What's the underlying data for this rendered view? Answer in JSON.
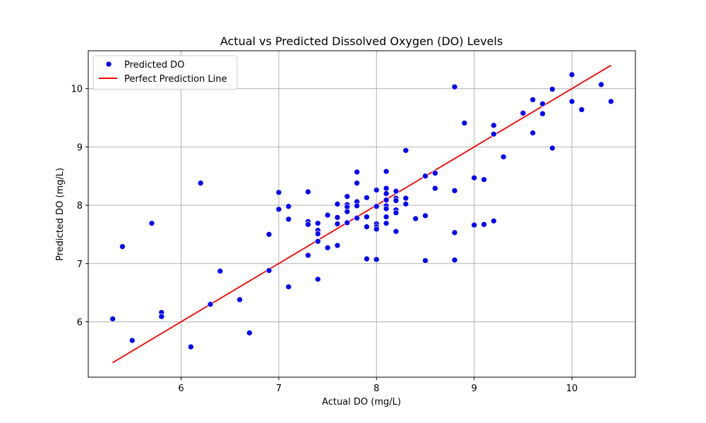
{
  "chart_data": {
    "type": "scatter",
    "title": "Actual vs Predicted Dissolved Oxygen (DO) Levels",
    "xlabel": "Actual DO (mg/L)",
    "ylabel": "Predicted DO (mg/L)",
    "xlim": [
      5.05,
      10.65
    ],
    "ylim": [
      5.05,
      10.65
    ],
    "xticks": [
      6,
      7,
      8,
      9,
      10
    ],
    "yticks": [
      6,
      7,
      8,
      9,
      10
    ],
    "grid": true,
    "legend_position": "upper-left",
    "series": [
      {
        "name": "Predicted DO",
        "kind": "scatter",
        "color": "#0000ff",
        "x": [
          5.3,
          5.4,
          5.5,
          5.7,
          5.8,
          5.8,
          6.1,
          6.2,
          6.3,
          6.4,
          6.6,
          6.7,
          6.9,
          6.9,
          7.0,
          7.0,
          7.1,
          7.1,
          7.1,
          7.3,
          7.3,
          7.3,
          7.3,
          7.4,
          7.4,
          7.4,
          7.4,
          7.4,
          7.5,
          7.5,
          7.6,
          7.6,
          7.6,
          7.6,
          7.7,
          7.7,
          7.7,
          7.7,
          7.7,
          7.8,
          7.8,
          7.8,
          7.8,
          7.8,
          7.9,
          7.9,
          7.9,
          7.9,
          8.0,
          8.0,
          8.0,
          8.0,
          8.0,
          8.0,
          8.1,
          8.1,
          8.1,
          8.1,
          8.1,
          8.1,
          8.1,
          8.1,
          8.2,
          8.2,
          8.2,
          8.2,
          8.2,
          8.2,
          8.3,
          8.3,
          8.3,
          8.4,
          8.5,
          8.5,
          8.5,
          8.6,
          8.6,
          8.8,
          8.8,
          8.8,
          8.8,
          8.9,
          9.0,
          9.0,
          9.1,
          9.1,
          9.2,
          9.2,
          9.2,
          9.3,
          9.5,
          9.6,
          9.6,
          9.7,
          9.7,
          9.8,
          9.8,
          10.0,
          10.0,
          10.1,
          10.3,
          10.4
        ],
        "y": [
          6.05,
          7.29,
          5.68,
          7.69,
          6.16,
          6.09,
          5.57,
          8.38,
          6.3,
          6.87,
          6.38,
          5.81,
          7.5,
          6.88,
          8.22,
          7.93,
          7.98,
          7.76,
          6.6,
          8.23,
          7.72,
          7.67,
          7.14,
          7.69,
          7.57,
          7.51,
          7.38,
          6.73,
          7.83,
          7.27,
          8.02,
          7.79,
          7.68,
          7.31,
          8.15,
          8.01,
          7.97,
          7.89,
          7.7,
          8.57,
          8.38,
          8.06,
          7.99,
          7.78,
          8.13,
          7.8,
          7.63,
          7.08,
          8.26,
          7.98,
          7.68,
          7.63,
          7.59,
          7.07,
          8.58,
          8.29,
          8.2,
          8.09,
          7.99,
          7.94,
          7.8,
          7.69,
          8.24,
          8.12,
          8.08,
          7.92,
          7.87,
          7.55,
          8.94,
          8.12,
          8.02,
          7.77,
          8.5,
          7.82,
          7.05,
          8.55,
          8.29,
          10.03,
          8.25,
          7.53,
          7.06,
          9.41,
          8.47,
          7.66,
          8.44,
          7.67,
          9.37,
          9.22,
          7.73,
          8.83,
          9.58,
          9.81,
          9.24,
          9.74,
          9.57,
          9.99,
          8.98,
          10.24,
          9.78,
          9.64,
          10.07,
          9.78
        ]
      },
      {
        "name": "Perfect Prediction Line",
        "kind": "line",
        "color": "#ff0000",
        "x": [
          5.3,
          10.4
        ],
        "y": [
          5.3,
          10.4
        ]
      }
    ]
  }
}
